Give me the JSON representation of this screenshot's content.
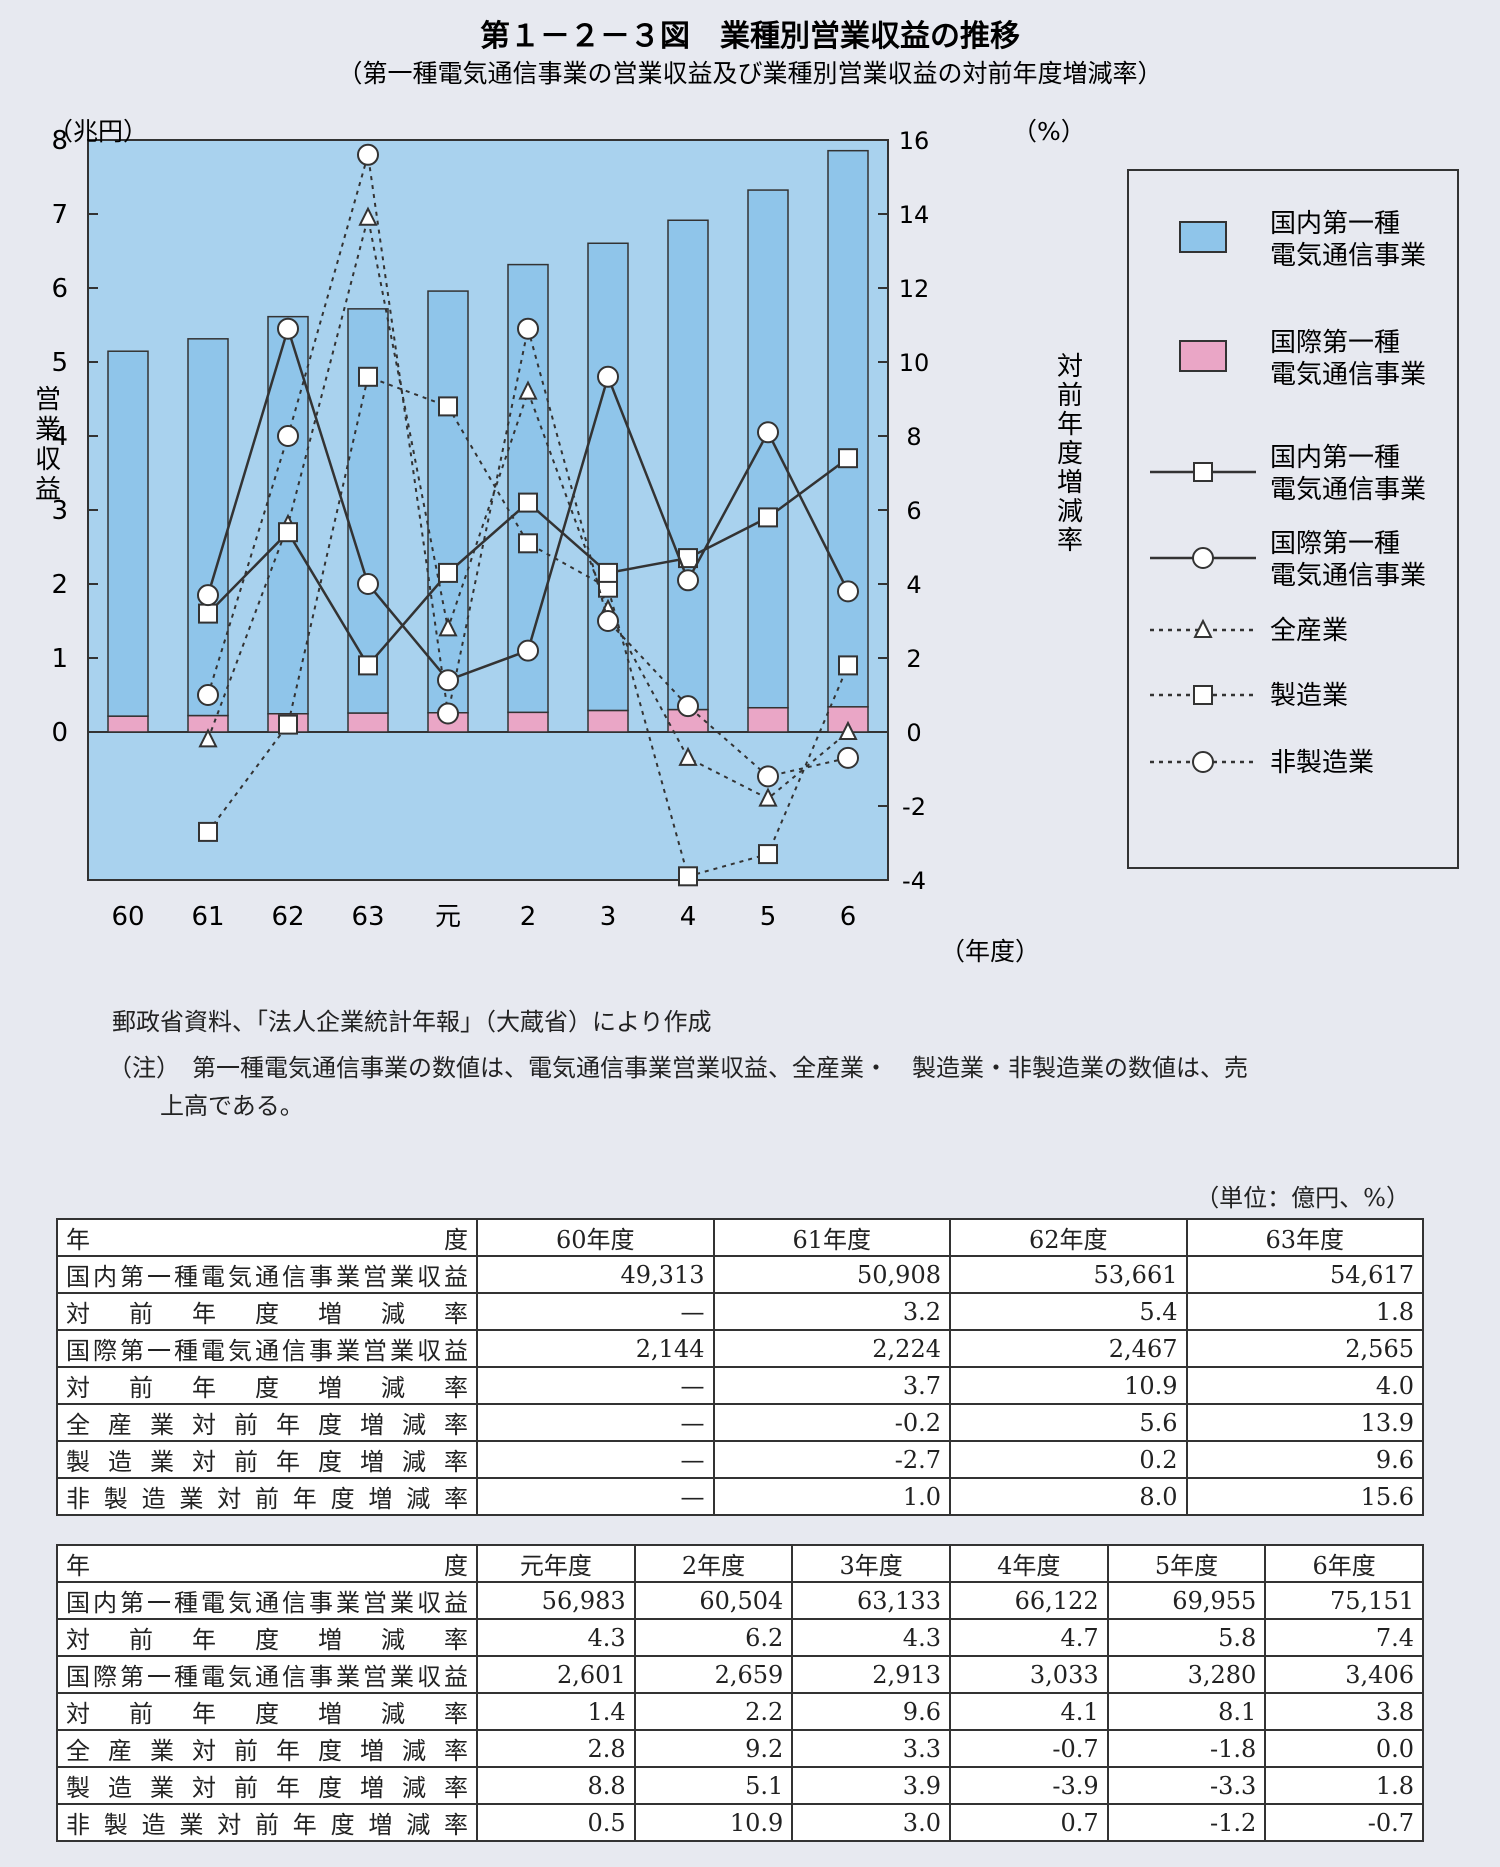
{
  "figure": {
    "title": "第１－２－３図　業種別営業収益の推移",
    "subtitle": "（第一種電気通信事業の営業収益及び業種別営業収益の対前年度増減率）"
  },
  "chart_data": {
    "type": "bar+line",
    "categories": [
      "60",
      "61",
      "62",
      "63",
      "元",
      "2",
      "3",
      "4",
      "5",
      "6"
    ],
    "x_unit": "（年度）",
    "left_axis": {
      "unit": "（兆円）",
      "label": "営業収益",
      "range": [
        -2,
        8
      ],
      "ticks": [
        0,
        1,
        2,
        3,
        4,
        5,
        6,
        7,
        8
      ]
    },
    "right_axis": {
      "unit": "（%）",
      "label": "対前年度増減率",
      "range": [
        -4,
        16
      ],
      "ticks": [
        -4,
        -2,
        0,
        2,
        4,
        6,
        8,
        10,
        12,
        14,
        16
      ]
    },
    "bar_series": [
      {
        "name": "国内第一種電気通信事業",
        "color": "#8fc5ea",
        "values": [
          4.9313,
          5.0908,
          5.3661,
          5.4617,
          5.6983,
          6.0504,
          6.3133,
          6.6122,
          6.9955,
          7.5151
        ]
      },
      {
        "name": "国際第一種電気通信事業",
        "color": "#eaa6c6",
        "values": [
          0.2144,
          0.2224,
          0.2467,
          0.2565,
          0.2601,
          0.2659,
          0.2913,
          0.3033,
          0.328,
          0.3406
        ]
      }
    ],
    "line_series": [
      {
        "name": "国内第一種電気通信事業",
        "style": "solid",
        "marker": "square",
        "values": [
          null,
          3.2,
          5.4,
          1.8,
          4.3,
          6.2,
          4.3,
          4.7,
          5.8,
          7.4
        ]
      },
      {
        "name": "国際第一種電気通信事業",
        "style": "solid",
        "marker": "circle",
        "values": [
          null,
          3.7,
          10.9,
          4.0,
          1.4,
          2.2,
          9.6,
          4.1,
          8.1,
          3.8
        ]
      },
      {
        "name": "全産業",
        "style": "dotted",
        "marker": "triangle",
        "values": [
          null,
          -0.2,
          5.6,
          13.9,
          2.8,
          9.2,
          3.3,
          -0.7,
          -1.8,
          0.0
        ]
      },
      {
        "name": "製造業",
        "style": "dotted",
        "marker": "square",
        "values": [
          null,
          -2.7,
          0.2,
          9.6,
          8.8,
          5.1,
          3.9,
          -3.9,
          -3.3,
          1.8
        ]
      },
      {
        "name": "非製造業",
        "style": "dotted",
        "marker": "circle",
        "values": [
          null,
          1.0,
          8.0,
          15.6,
          0.5,
          10.9,
          3.0,
          0.7,
          -1.2,
          -0.7
        ]
      }
    ],
    "legend": [
      {
        "line1": "国内第一種",
        "line2": "電気通信事業",
        "kind": "bar",
        "color": "#8fc5ea"
      },
      {
        "line1": "国際第一種",
        "line2": "電気通信事業",
        "kind": "bar",
        "color": "#eaa6c6"
      },
      {
        "line1": "国内第一種",
        "line2": "電気通信事業",
        "kind": "solid-square"
      },
      {
        "line1": "国際第一種",
        "line2": "電気通信事業",
        "kind": "solid-circle"
      },
      {
        "line1": "全産業",
        "line2": "",
        "kind": "dotted-triangle"
      },
      {
        "line1": "製造業",
        "line2": "",
        "kind": "dotted-square"
      },
      {
        "line1": "非製造業",
        "line2": "",
        "kind": "dotted-circle"
      }
    ],
    "legend_position": "right"
  },
  "notes": {
    "source": "郵政省資料、「法人企業統計年報」（大蔵省）により作成",
    "note_line1": "（注）　第一種電気通信事業の数値は、電気通信事業営業収益、全産業・　製造業・非製造業の数値は、売",
    "note_line2": "上高である。"
  },
  "unit_label": "（単位：億円、%）",
  "tables": [
    {
      "corner_left": "年",
      "corner_right": "度",
      "columns": [
        "60年度",
        "61年度",
        "62年度",
        "63年度"
      ],
      "rows": [
        {
          "label": "国内第一種電気通信事業営業収益",
          "values": [
            "49,313",
            "50,908",
            "53,661",
            "54,617"
          ]
        },
        {
          "label": "対前年度増減率",
          "values": [
            "—",
            "3.2",
            "5.4",
            "1.8"
          ]
        },
        {
          "label": "国際第一種電気通信事業営業収益",
          "values": [
            "2,144",
            "2,224",
            "2,467",
            "2,565"
          ]
        },
        {
          "label": "対前年度増減率",
          "values": [
            "—",
            "3.7",
            "10.9",
            "4.0"
          ]
        },
        {
          "label": "全産業対前年度増減率",
          "values": [
            "—",
            "-0.2",
            "5.6",
            "13.9"
          ]
        },
        {
          "label": "製造業対前年度増減率",
          "values": [
            "—",
            "-2.7",
            "0.2",
            "9.6"
          ]
        },
        {
          "label": "非製造業対前年度増減率",
          "values": [
            "—",
            "1.0",
            "8.0",
            "15.6"
          ]
        }
      ]
    },
    {
      "corner_left": "年",
      "corner_right": "度",
      "columns": [
        "元年度",
        "2年度",
        "3年度",
        "4年度",
        "5年度",
        "6年度"
      ],
      "rows": [
        {
          "label": "国内第一種電気通信事業営業収益",
          "values": [
            "56,983",
            "60,504",
            "63,133",
            "66,122",
            "69,955",
            "75,151"
          ]
        },
        {
          "label": "対前年度増減率",
          "values": [
            "4.3",
            "6.2",
            "4.3",
            "4.7",
            "5.8",
            "7.4"
          ]
        },
        {
          "label": "国際第一種電気通信事業営業収益",
          "values": [
            "2,601",
            "2,659",
            "2,913",
            "3,033",
            "3,280",
            "3,406"
          ]
        },
        {
          "label": "対前年度増減率",
          "values": [
            "1.4",
            "2.2",
            "9.6",
            "4.1",
            "8.1",
            "3.8"
          ]
        },
        {
          "label": "全産業対前年度増減率",
          "values": [
            "2.8",
            "9.2",
            "3.3",
            "-0.7",
            "-1.8",
            "0.0"
          ]
        },
        {
          "label": "製造業対前年度増減率",
          "values": [
            "8.8",
            "5.1",
            "3.9",
            "-3.9",
            "-3.3",
            "1.8"
          ]
        },
        {
          "label": "非製造業対前年度増減率",
          "values": [
            "0.5",
            "10.9",
            "3.0",
            "0.7",
            "-1.2",
            "-0.7"
          ]
        }
      ]
    }
  ]
}
